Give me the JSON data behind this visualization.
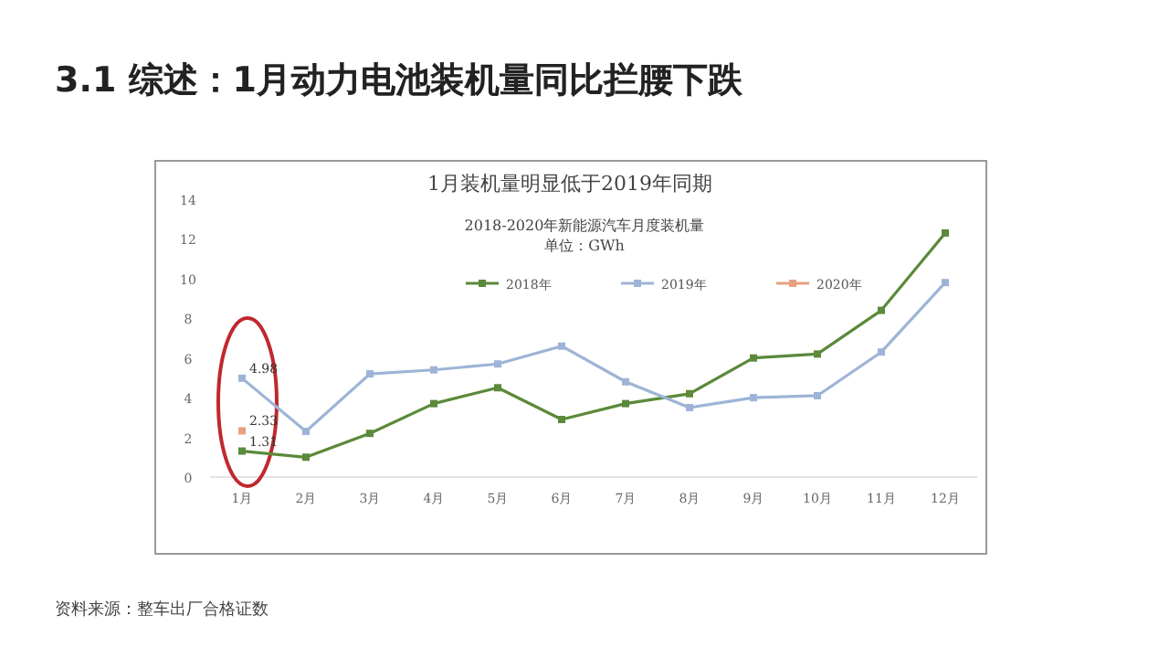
{
  "chart_data": {
    "type": "line",
    "title": "3.1 综述：1月动力电池装机量同比拦腰下跌",
    "subtitle": "1月装机量明显低于2019年同期",
    "annotations": [
      "2018-2020年新能源汽车月度装机量",
      "单位：GWh",
      "资料来源：整车出厂合格证数"
    ],
    "categories": [
      "1月",
      "2月",
      "3月",
      "4月",
      "5月",
      "6月",
      "7月",
      "8月",
      "9月",
      "10月",
      "11月",
      "12月"
    ],
    "ylim": [
      0,
      14
    ],
    "yticks": [
      0,
      2,
      4,
      6,
      8,
      10,
      12,
      14
    ],
    "marker": "square",
    "legend": "top",
    "series": [
      {
        "name": "2018年",
        "color": "#5a8a3a",
        "values": [
          1.31,
          1.0,
          2.2,
          3.7,
          4.5,
          2.9,
          3.7,
          4.2,
          6.0,
          6.2,
          8.4,
          12.3
        ],
        "value_labels": [
          "1.31",
          null,
          null,
          null,
          null,
          null,
          null,
          null,
          null,
          null,
          null,
          null
        ]
      },
      {
        "name": "2019年",
        "color": "#9db4d6",
        "values": [
          4.98,
          2.3,
          5.2,
          5.4,
          5.7,
          6.6,
          4.8,
          3.5,
          4.0,
          4.1,
          6.3,
          9.8
        ],
        "value_labels": [
          "4.98",
          null,
          null,
          null,
          null,
          null,
          null,
          null,
          null,
          null,
          null,
          null
        ]
      },
      {
        "name": "2020年",
        "color": "#e8a080",
        "values": [
          2.33,
          null,
          null,
          null,
          null,
          null,
          null,
          null,
          null,
          null,
          null,
          null
        ],
        "value_labels": [
          "2.33",
          null,
          null,
          null,
          null,
          null,
          null,
          null,
          null,
          null,
          null,
          null
        ]
      }
    ]
  }
}
